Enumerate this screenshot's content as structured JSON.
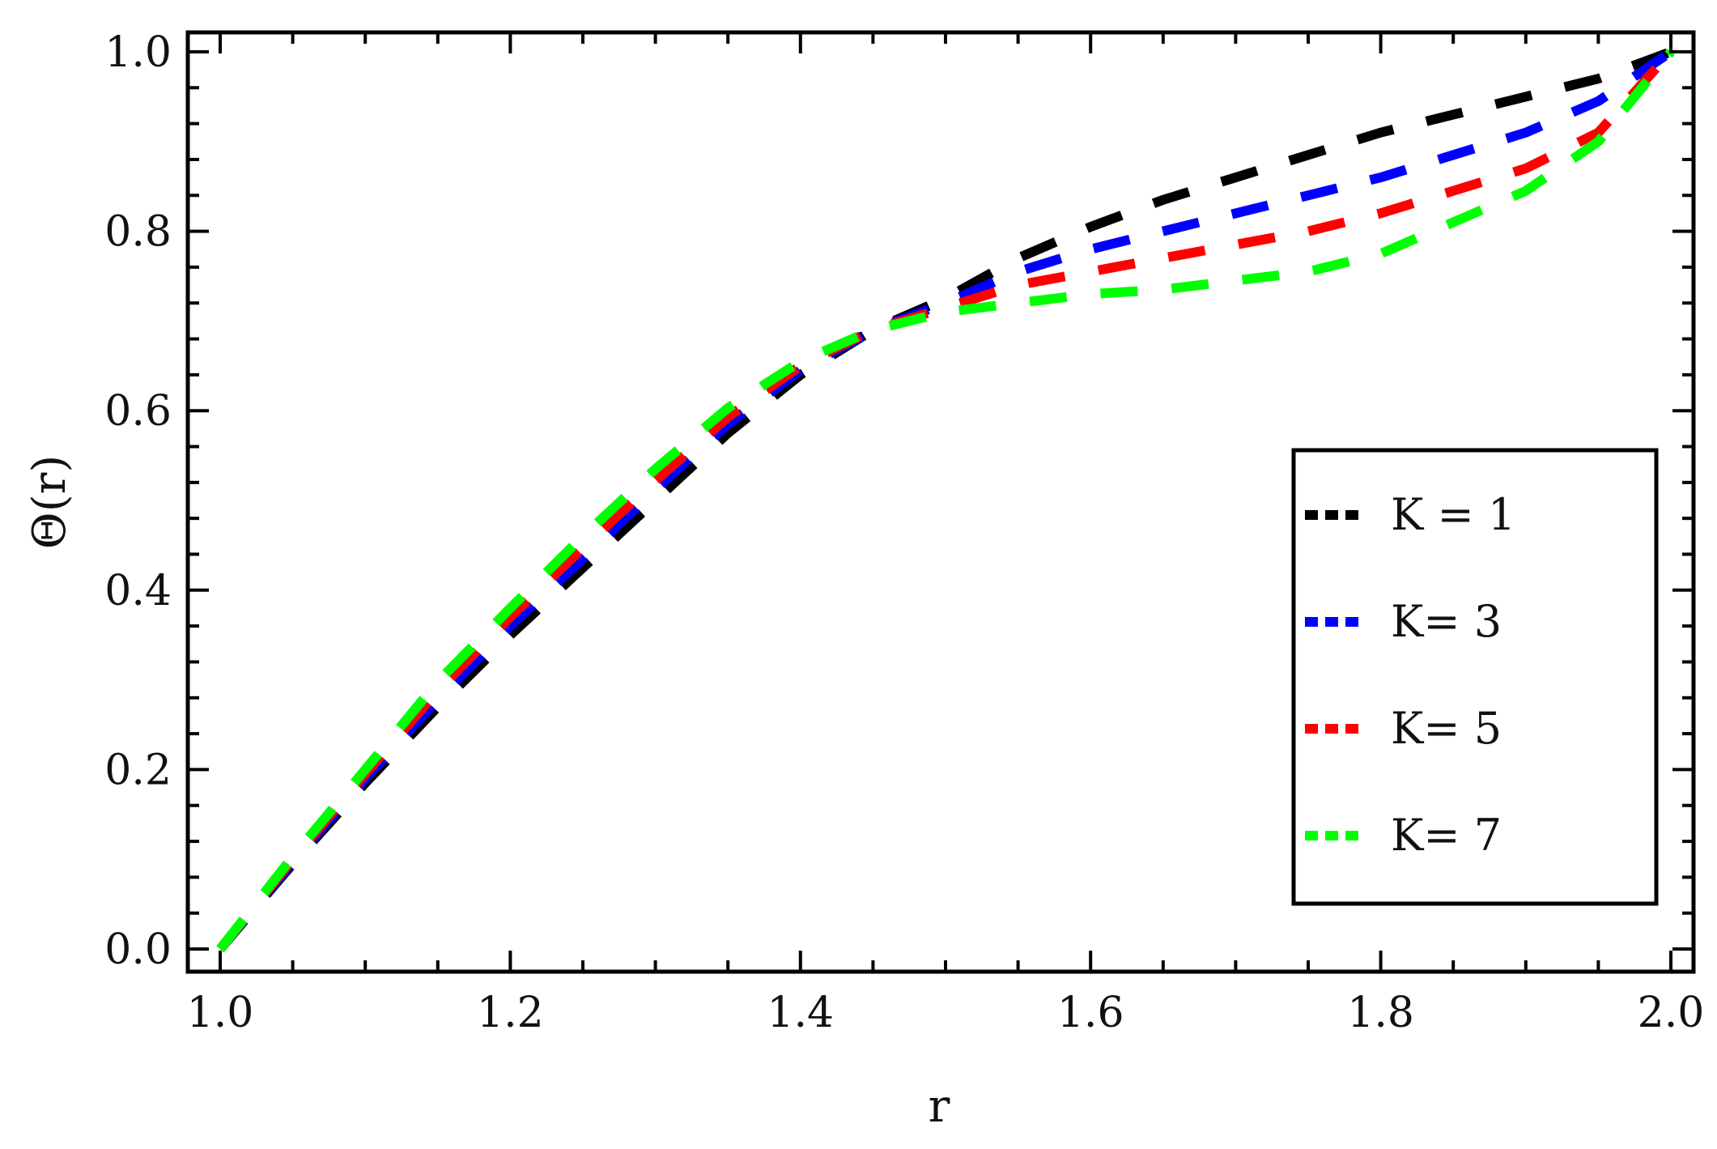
{
  "chart_data": {
    "type": "line",
    "title": "",
    "xlabel": "r",
    "ylabel": "Θ(r)",
    "xlim": [
      1.0,
      2.0
    ],
    "ylim": [
      0.0,
      1.0
    ],
    "x_ticks": [
      "1.0",
      "1.2",
      "1.4",
      "1.6",
      "1.8",
      "2.0"
    ],
    "y_ticks": [
      "0.0",
      "0.2",
      "0.4",
      "0.6",
      "0.8",
      "1.0"
    ],
    "grid": false,
    "legend_position": "right",
    "line_style": "dashed",
    "series": [
      {
        "name": "K = 1",
        "color": "#000000",
        "x": [
          1.0,
          1.05,
          1.1,
          1.15,
          1.2,
          1.25,
          1.3,
          1.35,
          1.4,
          1.45,
          1.5,
          1.55,
          1.6,
          1.65,
          1.7,
          1.75,
          1.8,
          1.85,
          1.9,
          1.95,
          2.0
        ],
        "y": [
          0.0,
          0.095,
          0.185,
          0.27,
          0.35,
          0.425,
          0.5,
          0.575,
          0.64,
          0.69,
          0.725,
          0.77,
          0.805,
          0.835,
          0.86,
          0.885,
          0.91,
          0.93,
          0.95,
          0.97,
          1.0
        ]
      },
      {
        "name": "K= 3",
        "color": "#0000ff",
        "x": [
          1.0,
          1.05,
          1.1,
          1.15,
          1.2,
          1.25,
          1.3,
          1.35,
          1.4,
          1.45,
          1.5,
          1.55,
          1.6,
          1.65,
          1.7,
          1.75,
          1.8,
          1.85,
          1.9,
          1.95,
          2.0
        ],
        "y": [
          0.0,
          0.097,
          0.19,
          0.278,
          0.36,
          0.435,
          0.512,
          0.585,
          0.645,
          0.69,
          0.72,
          0.755,
          0.78,
          0.8,
          0.82,
          0.84,
          0.86,
          0.885,
          0.91,
          0.945,
          1.0
        ]
      },
      {
        "name": "K= 5",
        "color": "#ff0000",
        "x": [
          1.0,
          1.05,
          1.1,
          1.15,
          1.2,
          1.25,
          1.3,
          1.35,
          1.4,
          1.45,
          1.5,
          1.55,
          1.6,
          1.65,
          1.7,
          1.75,
          1.8,
          1.85,
          1.9,
          1.95,
          2.0
        ],
        "y": [
          0.0,
          0.1,
          0.195,
          0.288,
          0.37,
          0.447,
          0.522,
          0.593,
          0.65,
          0.69,
          0.715,
          0.74,
          0.755,
          0.77,
          0.785,
          0.8,
          0.82,
          0.845,
          0.87,
          0.91,
          1.0
        ]
      },
      {
        "name": "K= 7",
        "color": "#00ff00",
        "x": [
          1.0,
          1.05,
          1.1,
          1.15,
          1.2,
          1.25,
          1.3,
          1.35,
          1.4,
          1.45,
          1.5,
          1.55,
          1.6,
          1.65,
          1.7,
          1.75,
          1.8,
          1.85,
          1.9,
          1.95,
          2.0
        ],
        "y": [
          0.0,
          0.103,
          0.2,
          0.298,
          0.38,
          0.46,
          0.535,
          0.603,
          0.655,
          0.69,
          0.71,
          0.72,
          0.73,
          0.735,
          0.745,
          0.755,
          0.775,
          0.81,
          0.845,
          0.9,
          1.0
        ]
      }
    ]
  }
}
